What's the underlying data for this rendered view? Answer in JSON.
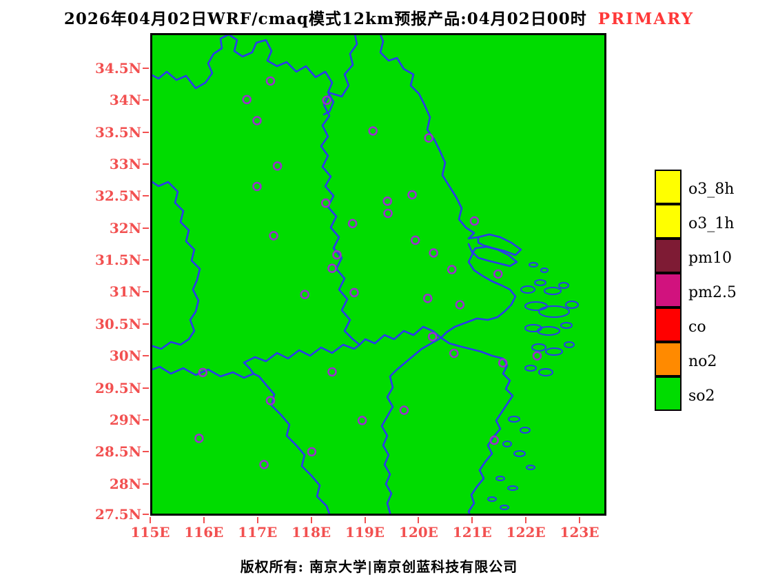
{
  "title": {
    "main": "2026年04月02日WRF/cmaq模式12km预报产品:04月02日00时",
    "highlight": "PRIMARY"
  },
  "colors": {
    "map_fill": "#00DC00",
    "boundary": "#2A3BEB",
    "station_ring": "#9932CC",
    "axis_label": "#F25050",
    "highlight": "#FF3838",
    "plot_border": "#000000"
  },
  "map": {
    "field_shown": "so2",
    "lon_range": [
      115,
      123.5
    ],
    "lat_range": [
      27.5,
      35.05
    ]
  },
  "axes": {
    "lat_ticks": [
      {
        "label": "34.5N",
        "value": 34.5
      },
      {
        "label": "34N",
        "value": 34.0
      },
      {
        "label": "33.5N",
        "value": 33.5
      },
      {
        "label": "33N",
        "value": 33.0
      },
      {
        "label": "32.5N",
        "value": 32.5
      },
      {
        "label": "32N",
        "value": 32.0
      },
      {
        "label": "31.5N",
        "value": 31.5
      },
      {
        "label": "31N",
        "value": 31.0
      },
      {
        "label": "30.5N",
        "value": 30.5
      },
      {
        "label": "30N",
        "value": 30.0
      },
      {
        "label": "29.5N",
        "value": 29.5
      },
      {
        "label": "29N",
        "value": 29.0
      },
      {
        "label": "28.5N",
        "value": 28.5
      },
      {
        "label": "28N",
        "value": 28.0
      },
      {
        "label": "27.5N",
        "value": 27.5
      }
    ],
    "lon_ticks": [
      {
        "label": "115E",
        "value": 115
      },
      {
        "label": "116E",
        "value": 116
      },
      {
        "label": "117E",
        "value": 117
      },
      {
        "label": "118E",
        "value": 118
      },
      {
        "label": "119E",
        "value": 119
      },
      {
        "label": "120E",
        "value": 120
      },
      {
        "label": "121E",
        "value": 121
      },
      {
        "label": "122E",
        "value": 122
      },
      {
        "label": "123E",
        "value": 123
      }
    ]
  },
  "legend": {
    "items": [
      {
        "label": "o3_8h",
        "color": "#FFFF00"
      },
      {
        "label": "o3_1h",
        "color": "#FFFF00"
      },
      {
        "label": "pm10",
        "color": "#7E1B34"
      },
      {
        "label": "pm2.5",
        "color": "#D1127E"
      },
      {
        "label": "co",
        "color": "#FF0000"
      },
      {
        "label": "no2",
        "color": "#FF8A00"
      },
      {
        "label": "so2",
        "color": "#00DC00"
      }
    ]
  },
  "stations": [
    [
      117.24,
      34.3
    ],
    [
      116.8,
      34.01
    ],
    [
      118.29,
      34.0
    ],
    [
      116.99,
      33.68
    ],
    [
      119.15,
      33.52
    ],
    [
      120.19,
      33.41
    ],
    [
      117.37,
      32.97
    ],
    [
      116.99,
      32.65
    ],
    [
      118.27,
      32.39
    ],
    [
      119.42,
      32.42
    ],
    [
      119.88,
      32.52
    ],
    [
      119.43,
      32.23
    ],
    [
      118.77,
      32.07
    ],
    [
      121.04,
      32.11
    ],
    [
      117.3,
      31.88
    ],
    [
      119.94,
      31.81
    ],
    [
      120.28,
      31.61
    ],
    [
      118.48,
      31.58
    ],
    [
      118.39,
      31.37
    ],
    [
      120.62,
      31.35
    ],
    [
      121.48,
      31.28
    ],
    [
      117.88,
      30.96
    ],
    [
      118.8,
      30.99
    ],
    [
      120.17,
      30.9
    ],
    [
      120.77,
      30.8
    ],
    [
      120.26,
      30.3
    ],
    [
      120.66,
      30.04
    ],
    [
      122.21,
      30.0
    ],
    [
      121.57,
      29.89
    ],
    [
      115.98,
      29.74
    ],
    [
      118.39,
      29.75
    ],
    [
      117.24,
      29.3
    ],
    [
      119.73,
      29.15
    ],
    [
      118.95,
      28.99
    ],
    [
      115.91,
      28.71
    ],
    [
      121.41,
      28.68
    ],
    [
      118.01,
      28.5
    ],
    [
      117.12,
      28.3
    ]
  ],
  "footer": {
    "copyright": "版权所有: 南京大学|南京创蓝科技有限公司"
  }
}
